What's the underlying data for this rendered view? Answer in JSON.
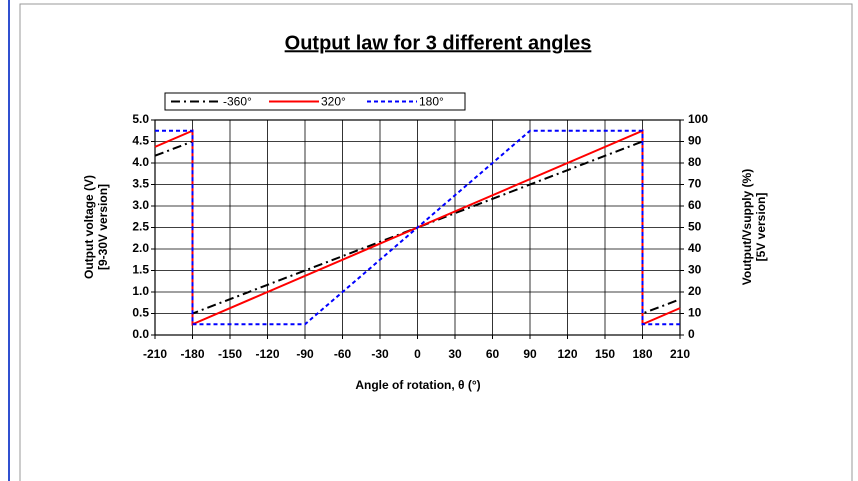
{
  "chart_data": {
    "type": "line",
    "title": "Output law for 3 different angles",
    "x_label": "Angle of rotation, θ (°)",
    "y_label": [
      "Output voltage (V)",
      "[9-30V version]"
    ],
    "y2_label": [
      "Voutput/Vsupply (%)",
      "[5V version]"
    ],
    "grid": true,
    "legend": "top-left",
    "series": [
      {
        "name": "-360°",
        "color": "#000000",
        "dash": "dashdot",
        "x": [
          -210,
          -180,
          -180,
          180,
          180,
          210
        ],
        "values": [
          4.17,
          4.5,
          0.5,
          4.5,
          0.5,
          0.83
        ]
      },
      {
        "name": "320°",
        "color": "#ff0000",
        "dash": "solid",
        "x": [
          -210,
          -180,
          -180,
          180,
          180,
          210
        ],
        "values": [
          4.375,
          4.75,
          0.25,
          4.75,
          0.25,
          0.625
        ]
      },
      {
        "name": "180°",
        "color": "#0000ff",
        "dash": "dashed",
        "x": [
          -210,
          -180,
          -180,
          -90,
          90,
          180,
          180,
          210
        ],
        "values": [
          4.75,
          4.75,
          0.25,
          0.25,
          4.75,
          4.75,
          0.25,
          0.25
        ]
      }
    ],
    "xlim": [
      -210,
      210
    ],
    "xticks": [
      -210,
      -180,
      -150,
      -120,
      -90,
      -60,
      -30,
      0,
      30,
      60,
      90,
      120,
      150,
      180,
      210
    ],
    "ylim": [
      0,
      5
    ],
    "yticks": [
      {
        "value": 0,
        "label": "0.0"
      },
      0.5,
      {
        "value": 1,
        "label": "1.0"
      },
      1.5,
      {
        "value": 2,
        "label": "2.0"
      },
      2.5,
      {
        "value": 3,
        "label": "3.0"
      },
      3.5,
      {
        "value": 4,
        "label": "4.0"
      },
      4.5,
      {
        "value": 5,
        "label": "5.0"
      }
    ],
    "y2lim": [
      0,
      100
    ],
    "y2ticks": [
      0,
      10,
      20,
      30,
      40,
      50,
      60,
      70,
      80,
      90,
      100
    ]
  }
}
